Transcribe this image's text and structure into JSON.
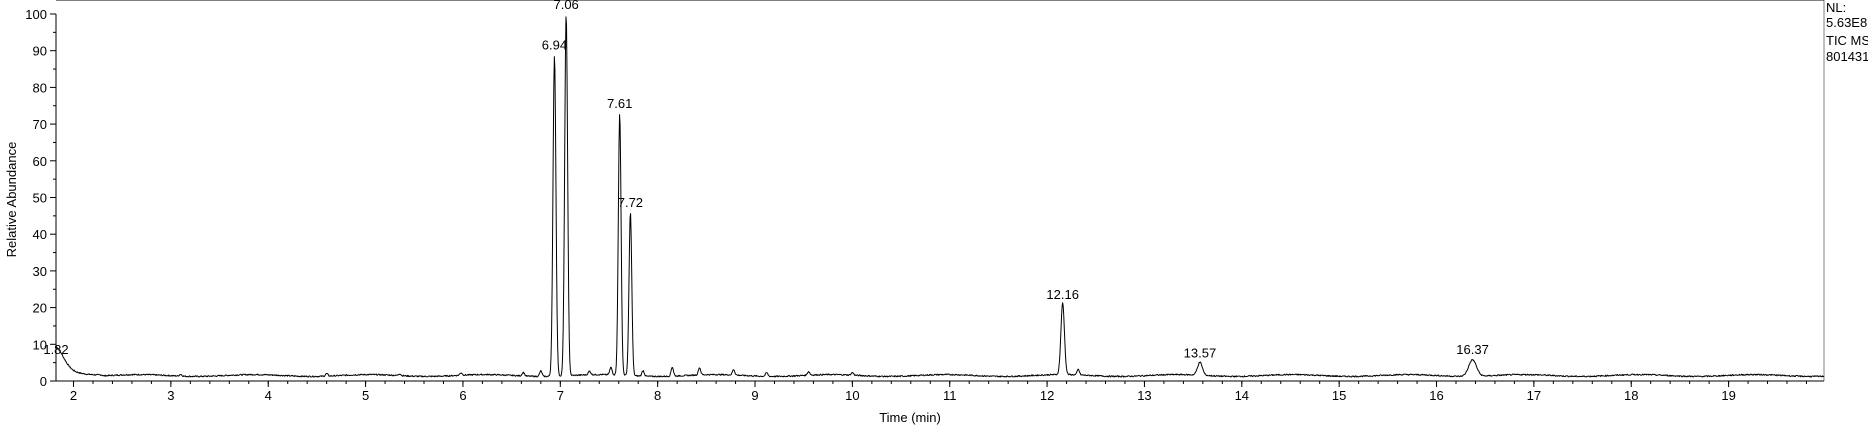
{
  "chart_data": {
    "type": "line",
    "title": "",
    "xlabel": "Time (min)",
    "ylabel": "Relative Abundance",
    "xlim": [
      1.82,
      19.98
    ],
    "ylim": [
      0,
      100
    ],
    "x_ticks": [
      2,
      3,
      4,
      5,
      6,
      7,
      8,
      9,
      10,
      11,
      12,
      13,
      14,
      15,
      16,
      17,
      18,
      19
    ],
    "y_ticks": [
      0,
      10,
      20,
      30,
      40,
      50,
      60,
      70,
      80,
      90,
      100
    ],
    "grid": false,
    "baseline": 1.5,
    "peaks": [
      {
        "label": "1.82",
        "x": 1.82,
        "y": 6,
        "width": 0.08
      },
      {
        "label": "6.94",
        "x": 6.94,
        "y": 89,
        "width": 0.015
      },
      {
        "label": "7.06",
        "x": 7.06,
        "y": 100,
        "width": 0.015
      },
      {
        "label": "7.61",
        "x": 7.61,
        "y": 73,
        "width": 0.014
      },
      {
        "label": "7.72",
        "x": 7.72,
        "y": 46,
        "width": 0.014
      },
      {
        "label": "12.16",
        "x": 12.16,
        "y": 21,
        "width": 0.018
      },
      {
        "label": "13.57",
        "x": 13.57,
        "y": 5,
        "width": 0.025
      },
      {
        "label": "16.37",
        "x": 16.37,
        "y": 6,
        "width": 0.04
      }
    ],
    "minor_peaks": [
      {
        "x": 3.1,
        "y": 2.0
      },
      {
        "x": 4.6,
        "y": 2.2
      },
      {
        "x": 5.35,
        "y": 2.0
      },
      {
        "x": 5.98,
        "y": 2.2
      },
      {
        "x": 6.62,
        "y": 2.5
      },
      {
        "x": 6.8,
        "y": 3.0
      },
      {
        "x": 7.3,
        "y": 2.5
      },
      {
        "x": 7.52,
        "y": 3.5
      },
      {
        "x": 7.85,
        "y": 3.0
      },
      {
        "x": 8.15,
        "y": 4.0
      },
      {
        "x": 8.43,
        "y": 3.5
      },
      {
        "x": 8.78,
        "y": 3.0
      },
      {
        "x": 9.12,
        "y": 2.5
      },
      {
        "x": 9.55,
        "y": 2.5
      },
      {
        "x": 10.0,
        "y": 2.2
      },
      {
        "x": 12.32,
        "y": 3.0
      }
    ],
    "info": {
      "nl_label": "NL:",
      "nl_value": "5.63E8",
      "scan": "TIC MS",
      "file": "801431"
    }
  }
}
